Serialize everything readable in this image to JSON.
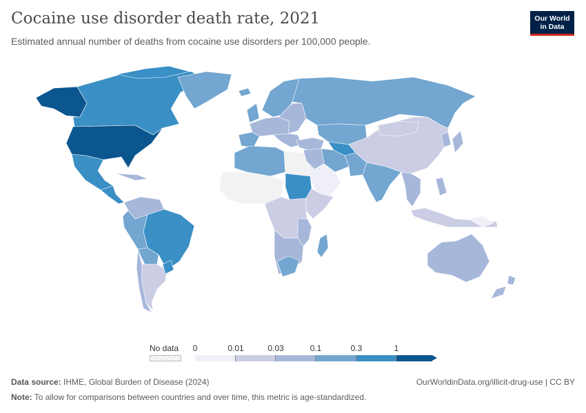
{
  "title": "Cocaine use disorder death rate, 2021",
  "subtitle": "Estimated annual number of deaths from cocaine use disorders per 100,000 people.",
  "logo": {
    "line1": "Our World",
    "line2": "in Data"
  },
  "legend": {
    "no_data_label": "No data",
    "ticks": [
      "0",
      "0.01",
      "0.03",
      "0.1",
      "0.3",
      "1"
    ],
    "colors": [
      "#eff0f7",
      "#cacde3",
      "#a6b7da",
      "#73a6d0",
      "#3a8fc5",
      "#0c5690"
    ]
  },
  "colors": {
    "no_data": "#f2f2f2",
    "border": "#ffffff",
    "bin0": "#eff0f7",
    "bin1": "#cacde3",
    "bin2": "#a6b7da",
    "bin3": "#73a6d0",
    "bin4": "#3a8fc5",
    "bin5": "#0c5690"
  },
  "footer": {
    "source_label": "Data source:",
    "source_text": "IHME, Global Burden of Disease (2024)",
    "url": "OurWorldinData.org/illicit-drug-use | CC BY",
    "note_label": "Note:",
    "note_text": "To allow for comparisons between countries and over time, this metric is age-standardized."
  }
}
